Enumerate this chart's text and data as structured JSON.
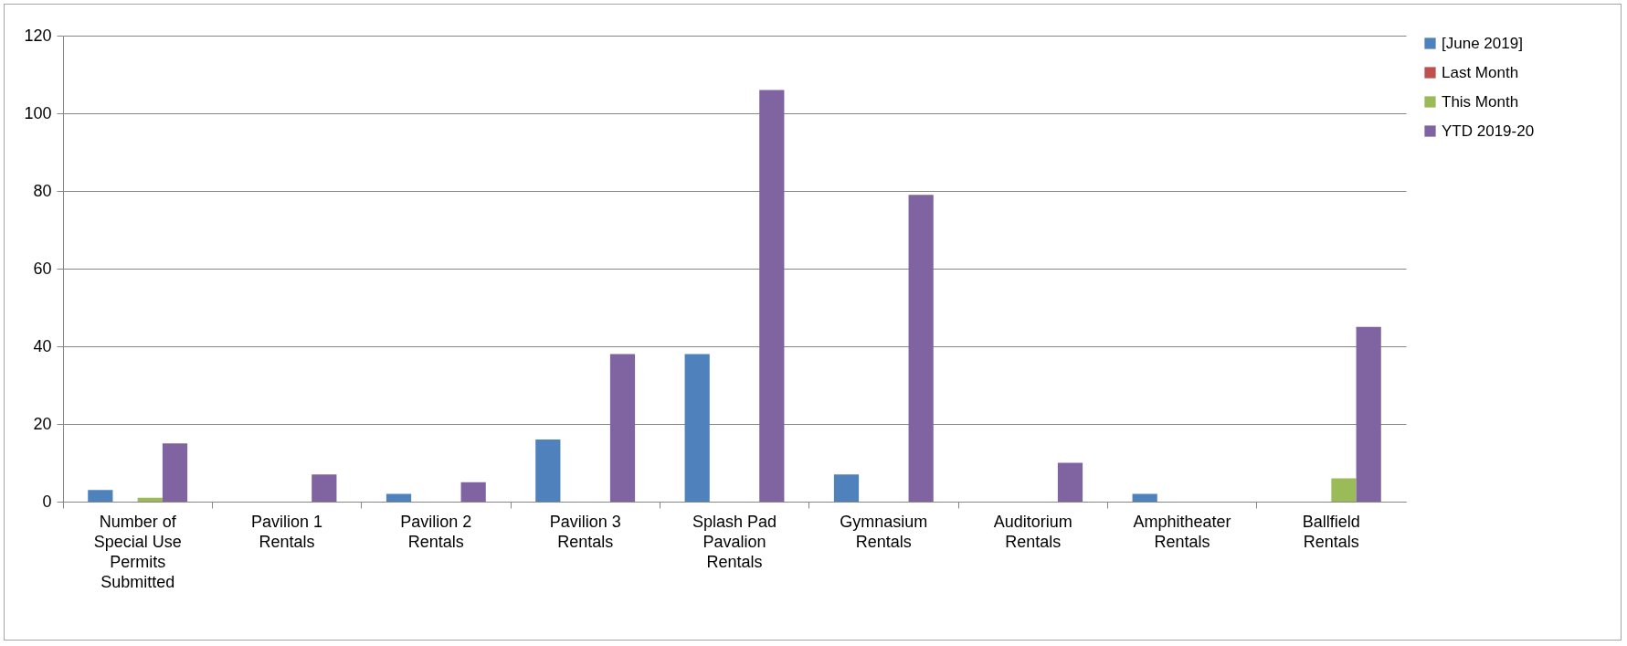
{
  "chart_data": {
    "type": "bar",
    "categories": [
      "Number of Special Use Permits Submitted",
      "Pavilion 1 Rentals",
      "Pavilion 2 Rentals",
      "Pavilion 3 Rentals",
      "Splash Pad Pavalion Rentals",
      "Gymnasium Rentals",
      "Auditorium Rentals",
      "Amphitheater Rentals",
      "Ballfield Rentals"
    ],
    "series": [
      {
        "name": "[June 2019]",
        "color": "#4f81bd",
        "values": [
          3,
          0,
          2,
          16,
          38,
          7,
          0,
          2,
          0
        ]
      },
      {
        "name": "Last Month",
        "color": "#c0504d",
        "values": [
          0,
          0,
          0,
          0,
          0,
          0,
          0,
          0,
          0
        ]
      },
      {
        "name": "This Month",
        "color": "#9bbb59",
        "values": [
          1,
          0,
          0,
          0,
          0,
          0,
          0,
          0,
          6
        ]
      },
      {
        "name": "YTD 2019-20",
        "color": "#8064a2",
        "values": [
          15,
          7,
          5,
          38,
          106,
          79,
          10,
          0,
          45
        ]
      }
    ],
    "ylim": [
      0,
      120
    ],
    "yticks": [
      0,
      20,
      40,
      60,
      80,
      100,
      120
    ],
    "grid": "y",
    "legend": "right"
  }
}
